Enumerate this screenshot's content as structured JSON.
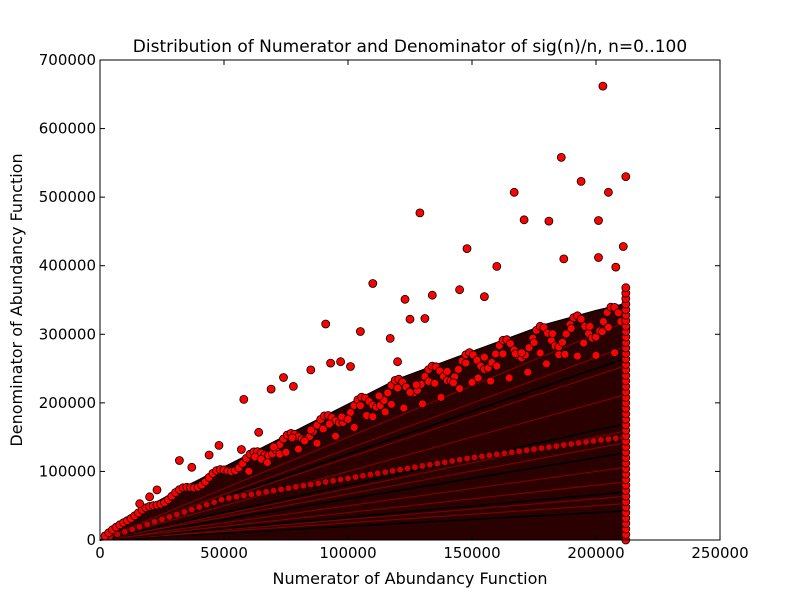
{
  "chart_data": {
    "type": "scatter",
    "title": "Distribution of Numerator and Denominator of sig(n)/n, n=0..100",
    "xlabel": "Numerator of Abundancy Function",
    "ylabel": "Denominator of Abundancy Function",
    "xlim": [
      0,
      250000
    ],
    "ylim": [
      0,
      700000
    ],
    "xticks": [
      0,
      50000,
      100000,
      150000,
      200000,
      250000
    ],
    "yticks": [
      0,
      100000,
      200000,
      300000,
      400000,
      500000,
      600000,
      700000
    ],
    "xtick_labels": [
      "0",
      "50000",
      "100000",
      "150000",
      "200000",
      "250000"
    ],
    "ytick_labels": [
      "0",
      "100000",
      "200000",
      "300000",
      "400000",
      "500000",
      "600000",
      "700000"
    ],
    "grid": false,
    "marker_color": "#ff0000",
    "marker_edge_color": "#000000",
    "marker_shape": "circle",
    "outliers": [
      [
        202800,
        662000
      ],
      [
        186000,
        558000
      ],
      [
        194000,
        523000
      ],
      [
        212000,
        530000
      ],
      [
        167000,
        507000
      ],
      [
        205000,
        507000
      ],
      [
        129000,
        477000
      ],
      [
        171000,
        467000
      ],
      [
        181000,
        465000
      ],
      [
        201000,
        466000
      ],
      [
        211000,
        428000
      ],
      [
        148000,
        425000
      ],
      [
        160000,
        399000
      ],
      [
        187000,
        410000
      ],
      [
        201000,
        412000
      ],
      [
        208000,
        398000
      ],
      [
        110000,
        374000
      ],
      [
        123000,
        351000
      ],
      [
        134000,
        357000
      ],
      [
        145000,
        365000
      ],
      [
        155000,
        355000
      ],
      [
        91000,
        315000
      ],
      [
        105000,
        304000
      ],
      [
        125000,
        322000
      ],
      [
        131000,
        323000
      ],
      [
        78000,
        224000
      ],
      [
        58000,
        205000
      ],
      [
        74000,
        237000
      ],
      [
        69000,
        220000
      ],
      [
        85000,
        248000
      ],
      [
        93000,
        258000
      ],
      [
        97000,
        260000
      ],
      [
        101000,
        253000
      ],
      [
        117000,
        294000
      ],
      [
        120000,
        260000
      ],
      [
        64000,
        157000
      ],
      [
        57000,
        132000
      ],
      [
        48000,
        138000
      ],
      [
        44000,
        124000
      ],
      [
        32000,
        116000
      ],
      [
        37000,
        106000
      ],
      [
        23000,
        73000
      ],
      [
        20000,
        63000
      ],
      [
        16000,
        53000
      ]
    ],
    "upper_envelope": [
      [
        0,
        0
      ],
      [
        10000,
        30000
      ],
      [
        30000,
        70000
      ],
      [
        60000,
        125000
      ],
      [
        90000,
        180000
      ],
      [
        120000,
        235000
      ],
      [
        150000,
        275000
      ],
      [
        180000,
        315000
      ],
      [
        200000,
        335000
      ],
      [
        212000,
        345000
      ]
    ],
    "lower_band_envelope": [
      [
        0,
        0
      ],
      [
        50000,
        60000
      ],
      [
        100000,
        90000
      ],
      [
        150000,
        120000
      ],
      [
        180000,
        135000
      ],
      [
        200000,
        145000
      ],
      [
        212000,
        150000
      ]
    ],
    "ray_slopes": [
      0.2,
      0.25,
      0.3,
      0.33,
      0.4,
      0.5,
      0.6,
      0.67,
      0.75,
      0.8,
      1.0,
      1.2,
      1.25,
      1.33,
      1.5
    ],
    "vertical_edge_x": 212000,
    "vertical_edge_y_range": [
      0,
      370000
    ]
  }
}
